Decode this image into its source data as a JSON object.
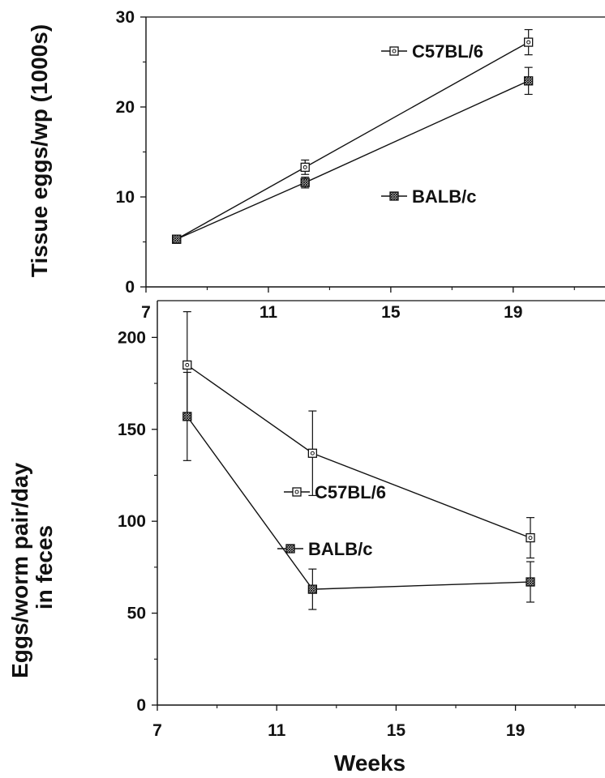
{
  "chart_data": [
    {
      "type": "line",
      "title": "",
      "xlabel": "",
      "ylabel": "Tissue eggs/wp (1000s)",
      "xlim": [
        7,
        22
      ],
      "ylim": [
        0,
        30
      ],
      "xticks": [
        7,
        11,
        15,
        19
      ],
      "yticks": [
        0,
        10,
        20,
        30
      ],
      "series": [
        {
          "name": "C57BL/6",
          "marker": "open-square",
          "x": [
            8,
            12.2,
            19.5
          ],
          "y": [
            5.3,
            13.3,
            27.2
          ],
          "err": [
            0.2,
            0.8,
            1.4
          ]
        },
        {
          "name": "BALB/c",
          "marker": "hatched-square",
          "x": [
            8,
            12.2,
            19.5
          ],
          "y": [
            5.3,
            11.6,
            22.9
          ],
          "err": [
            0.2,
            0.6,
            1.5
          ]
        }
      ]
    },
    {
      "type": "line",
      "title": "",
      "xlabel": "Weeks",
      "ylabel": "Eggs/worm pair/day\nin feces",
      "xlim": [
        7,
        22
      ],
      "ylim": [
        0,
        220
      ],
      "xticks": [
        7,
        11,
        15,
        19
      ],
      "yticks": [
        0,
        50,
        100,
        150,
        200
      ],
      "series": [
        {
          "name": "C57BL/6",
          "marker": "open-square",
          "x": [
            8,
            12.2,
            19.5
          ],
          "y": [
            185,
            137,
            91
          ],
          "err": [
            29,
            23,
            11
          ]
        },
        {
          "name": "BALB/c",
          "marker": "hatched-square",
          "x": [
            8,
            12.2,
            19.5
          ],
          "y": [
            157,
            63,
            67
          ],
          "err": [
            24,
            11,
            11
          ]
        }
      ]
    }
  ]
}
